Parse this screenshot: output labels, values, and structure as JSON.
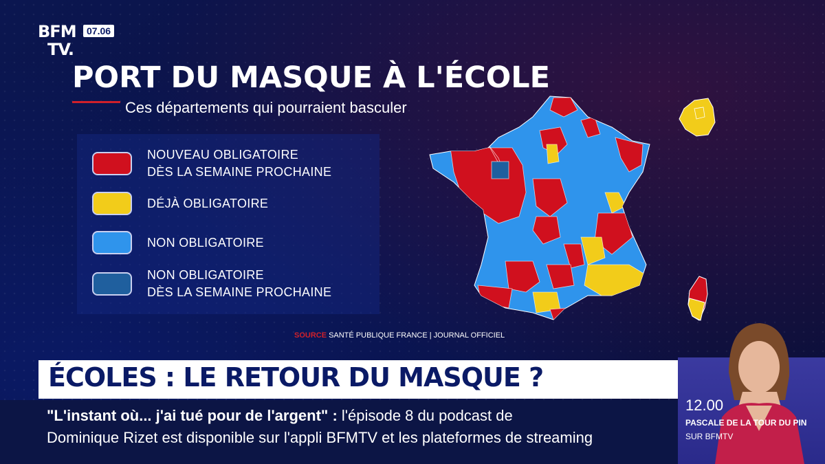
{
  "header": {
    "logo_line1": "BFM",
    "logo_line2": "TV.",
    "clock": "07.06"
  },
  "graphic": {
    "title": "PORT DU MASQUE À L'ÉCOLE",
    "subtitle": "Ces départements qui pourraient basculer",
    "legend": [
      {
        "line1": "NOUVEAU OBLIGATOIRE",
        "line2": "DÈS LA SEMAINE PROCHAINE",
        "color": "#d0101e"
      },
      {
        "line1": "DÉJÀ OBLIGATOIRE",
        "line2": "",
        "color": "#f2cc1a"
      },
      {
        "line1": "NON OBLIGATOIRE",
        "line2": "",
        "color": "#2f94ec"
      },
      {
        "line1": "NON OBLIGATOIRE",
        "line2": "DÈS LA SEMAINE PROCHAINE",
        "color": "#1f5f9e"
      }
    ],
    "source_label": "SOURCE",
    "source_text": "SANTÉ PUBLIQUE FRANCE | JOURNAL OFFICIEL"
  },
  "lower_third": {
    "headline": "ÉCOLES : LE RETOUR DU MASQUE ?",
    "ticker_bold": "\"L'instant où... j'ai tué pour de l'argent\"  :",
    "ticker_rest": " l'épisode 8 du podcast de",
    "ticker_line2": "Dominique Rizet est disponible sur l'appli BFMTV et les plateformes de streaming"
  },
  "next_show": {
    "time": "12.00",
    "name": "PASCALE DE LA TOUR DU PIN",
    "channel": "SUR BFMTV"
  },
  "colors": {
    "red": "#d0101e",
    "yellow": "#f2cc1a",
    "blue": "#2f94ec",
    "dark_blue": "#1f5f9e",
    "navy": "#0a1248"
  }
}
